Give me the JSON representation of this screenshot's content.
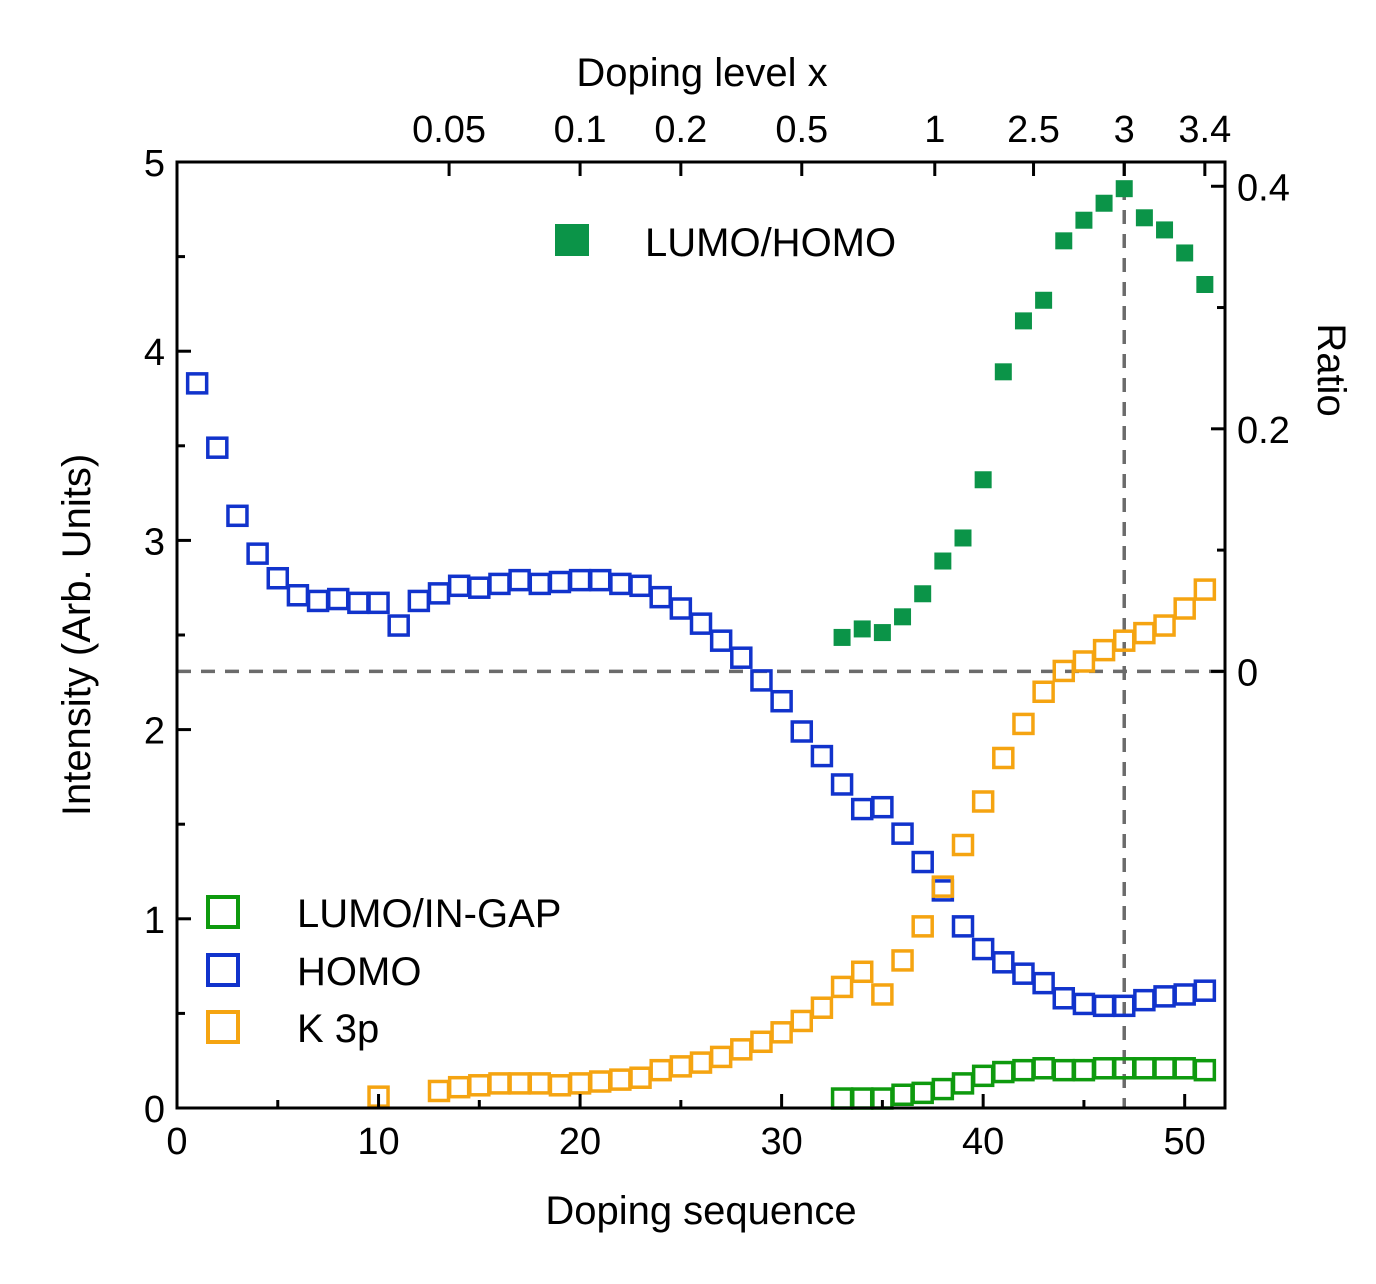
{
  "chart_data": {
    "type": "scatter",
    "xlabel": "Doping sequence",
    "ylabel": "Intensity (Arb. Units)",
    "top_xlabel": "Doping level x",
    "right_ylabel": "Ratio",
    "xlim": [
      0,
      52
    ],
    "ylim": [
      0,
      5
    ],
    "right_ylim": [
      -0.36,
      0.42
    ],
    "x_ticks": [
      0,
      10,
      20,
      30,
      40,
      50
    ],
    "x_tick_labels": [
      "0",
      "10",
      "20",
      "30",
      "40",
      "50"
    ],
    "y_ticks": [
      0,
      1,
      2,
      3,
      4,
      5
    ],
    "y_tick_labels": [
      "0",
      "1",
      "2",
      "3",
      "4",
      "5"
    ],
    "right_ticks": [
      0,
      0.2,
      0.4
    ],
    "right_tick_labels": [
      "0",
      "0.2",
      "0.4"
    ],
    "top_ticks": [
      {
        "seq": 13.5,
        "label": "0.05"
      },
      {
        "seq": 20,
        "label": "0.1"
      },
      {
        "seq": 25,
        "label": "0.2"
      },
      {
        "seq": 31,
        "label": "0.5"
      },
      {
        "seq": 37.6,
        "label": "1"
      },
      {
        "seq": 42.5,
        "label": "2.5"
      },
      {
        "seq": 47,
        "label": "3"
      },
      {
        "seq": 51,
        "label": "3.4"
      }
    ],
    "reference_lines": {
      "horizontal_ratio": 0,
      "vertical_seq": 47
    },
    "colors": {
      "green": "#0e9a0e",
      "blue": "#1133cc",
      "orange": "#f5a411",
      "ratio": "#0b9448",
      "dashed": "#6b6b6b"
    },
    "series": [
      {
        "name": "LUMO/IN-GAP",
        "axis": "left",
        "marker": "open-square",
        "color": "#0e9a0e",
        "x": [
          33,
          34,
          35,
          36,
          37,
          38,
          39,
          40,
          41,
          42,
          43,
          44,
          45,
          46,
          47,
          48,
          49,
          50,
          51
        ],
        "values": [
          0.05,
          0.05,
          0.05,
          0.07,
          0.08,
          0.1,
          0.13,
          0.17,
          0.19,
          0.2,
          0.21,
          0.2,
          0.2,
          0.21,
          0.21,
          0.21,
          0.21,
          0.21,
          0.2
        ]
      },
      {
        "name": "HOMO",
        "axis": "left",
        "marker": "open-square",
        "color": "#1133cc",
        "x": [
          1,
          2,
          3,
          4,
          5,
          6,
          7,
          8,
          9,
          10,
          11,
          12,
          13,
          14,
          15,
          16,
          17,
          18,
          19,
          20,
          21,
          22,
          23,
          24,
          25,
          26,
          27,
          28,
          29,
          30,
          31,
          32,
          33,
          34,
          35,
          36,
          37,
          38,
          39,
          40,
          41,
          42,
          43,
          44,
          45,
          46,
          47,
          48,
          49,
          50,
          51
        ],
        "values": [
          3.83,
          3.49,
          3.13,
          2.93,
          2.8,
          2.71,
          2.68,
          2.69,
          2.67,
          2.67,
          2.55,
          2.68,
          2.72,
          2.76,
          2.75,
          2.77,
          2.79,
          2.77,
          2.78,
          2.79,
          2.79,
          2.77,
          2.76,
          2.7,
          2.64,
          2.56,
          2.47,
          2.38,
          2.26,
          2.15,
          1.99,
          1.86,
          1.71,
          1.58,
          1.59,
          1.45,
          1.3,
          1.15,
          0.96,
          0.84,
          0.77,
          0.71,
          0.66,
          0.58,
          0.55,
          0.54,
          0.54,
          0.57,
          0.59,
          0.6,
          0.62
        ]
      },
      {
        "name": "K 3p",
        "axis": "left",
        "marker": "open-square",
        "color": "#f5a411",
        "x": [
          10,
          13,
          14,
          15,
          16,
          17,
          18,
          19,
          20,
          21,
          22,
          23,
          24,
          25,
          26,
          27,
          28,
          29,
          30,
          31,
          32,
          33,
          34,
          35,
          36,
          37,
          38,
          39,
          40,
          41,
          42,
          43,
          44,
          45,
          46,
          47,
          48,
          49,
          50,
          51
        ],
        "values": [
          0.06,
          0.09,
          0.11,
          0.12,
          0.13,
          0.13,
          0.13,
          0.12,
          0.13,
          0.14,
          0.15,
          0.16,
          0.2,
          0.22,
          0.24,
          0.27,
          0.31,
          0.35,
          0.4,
          0.46,
          0.53,
          0.64,
          0.72,
          0.6,
          0.78,
          0.96,
          1.17,
          1.39,
          1.62,
          1.85,
          2.03,
          2.2,
          2.31,
          2.36,
          2.42,
          2.47,
          2.51,
          2.55,
          2.64,
          2.74
        ]
      },
      {
        "name": "LUMO/HOMO",
        "axis": "right",
        "marker": "filled-square",
        "color": "#0b9448",
        "x": [
          33,
          34,
          35,
          36,
          37,
          38,
          39,
          40,
          41,
          42,
          43,
          44,
          45,
          46,
          47,
          48,
          49,
          50,
          51
        ],
        "values": [
          0.028,
          0.035,
          0.032,
          0.045,
          0.064,
          0.091,
          0.11,
          0.158,
          0.247,
          0.289,
          0.306,
          0.355,
          0.372,
          0.386,
          0.398,
          0.374,
          0.364,
          0.345,
          0.319
        ]
      }
    ],
    "legend_top": {
      "label": "LUMO/HOMO",
      "placement": "top-center"
    },
    "legend_bottom": {
      "placement": "bottom-left",
      "items": [
        "LUMO/IN-GAP",
        "HOMO",
        "K 3p"
      ]
    }
  }
}
